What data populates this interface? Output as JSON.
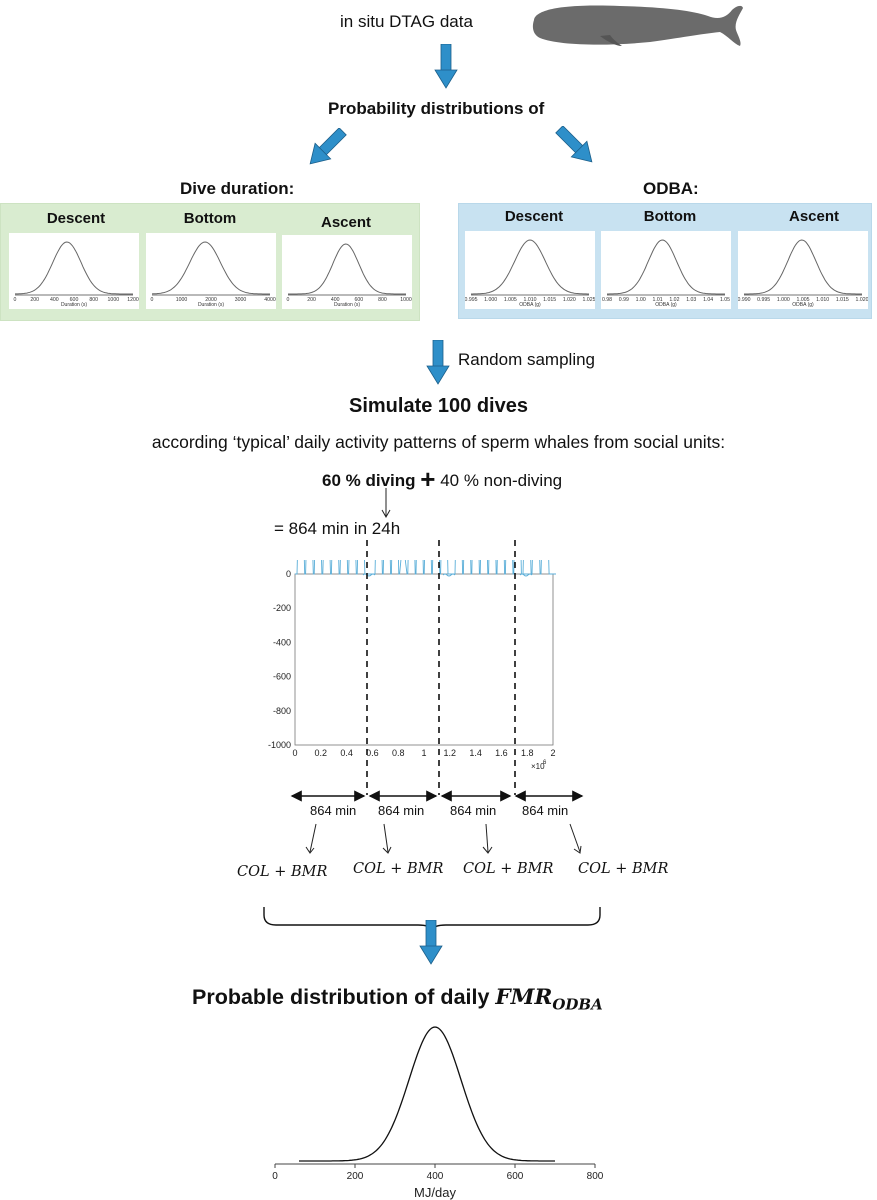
{
  "top": {
    "label": "in situ DTAG data"
  },
  "probability_heading": "Probability distributions of",
  "dive_duration": {
    "heading": "Dive duration:",
    "panels": [
      {
        "title": "Descent",
        "ticks": [
          "0",
          "200",
          "400",
          "600",
          "800",
          "1000",
          "1200"
        ],
        "axis_label": "Duration (s)"
      },
      {
        "title": "Bottom",
        "ticks": [
          "0",
          "1000",
          "2000",
          "3000",
          "4000"
        ],
        "axis_label": "Duration (s)"
      },
      {
        "title": "Ascent",
        "ticks": [
          "0",
          "200",
          "400",
          "600",
          "800",
          "1000"
        ],
        "axis_label": "Duration (s)"
      }
    ]
  },
  "odba": {
    "heading": "ODBA:",
    "panels": [
      {
        "title": "Descent",
        "ticks": [
          "0.995",
          "1.000",
          "1.005",
          "1.010",
          "1.015",
          "1.020",
          "1.025"
        ],
        "axis_label": "ODBA (g)"
      },
      {
        "title": "Bottom",
        "ticks": [
          "0.98",
          "0.99",
          "1.00",
          "1.01",
          "1.02",
          "1.03",
          "1.04",
          "1.05"
        ],
        "axis_label": "ODBA (g)"
      },
      {
        "title": "Ascent",
        "ticks": [
          "0.990",
          "0.995",
          "1.000",
          "1.005",
          "1.010",
          "1.015",
          "1.020"
        ],
        "axis_label": "ODBA (g)"
      }
    ]
  },
  "random_sampling": "Random sampling",
  "simulate": {
    "title": "Simulate 100 dives",
    "subtitle": "according ‘typical’ daily activity patterns of sperm whales from social units:",
    "diving": "60 % diving",
    "plus": "+",
    "non_diving": "40 % non-diving",
    "minutes": "= 864 min in 24h"
  },
  "dive_plot": {
    "y_ticks": [
      "0",
      "-200",
      "-400",
      "-600",
      "-800",
      "-1000"
    ],
    "x_ticks": [
      "0",
      "0.2",
      "0.4",
      "0.6",
      "0.8",
      "1",
      "1.2",
      "1.4",
      "1.6",
      "1.8",
      "2"
    ],
    "x_multiplier": "×10",
    "x_exponent": "6"
  },
  "segments": [
    {
      "minutes": "864 min",
      "formula": "COL + BMR"
    },
    {
      "minutes": "864 min",
      "formula": "COL + BMR"
    },
    {
      "minutes": "864 min",
      "formula": "COL + BMR"
    },
    {
      "minutes": "864 min",
      "formula": "COL + BMR"
    }
  ],
  "result": {
    "title_prefix": "Probable distribution of daily ",
    "title_var": "FMR",
    "title_sub": "ODBA"
  },
  "chart_data": {
    "type": "line",
    "x_ticks": [
      0,
      200,
      400,
      600,
      800
    ],
    "xlabel": "MJ/day",
    "xlim": [
      0,
      800
    ],
    "peak_x": 400,
    "series": [
      {
        "distribution": "normal",
        "mean": 400,
        "sd": 65
      }
    ]
  },
  "colors": {
    "arrow": "#2e8fc9",
    "green_panel": "#d9ecd0",
    "blue_panel": "#c8e2f1",
    "dive_line": "#5aaed8",
    "dots": "#e0191b"
  }
}
